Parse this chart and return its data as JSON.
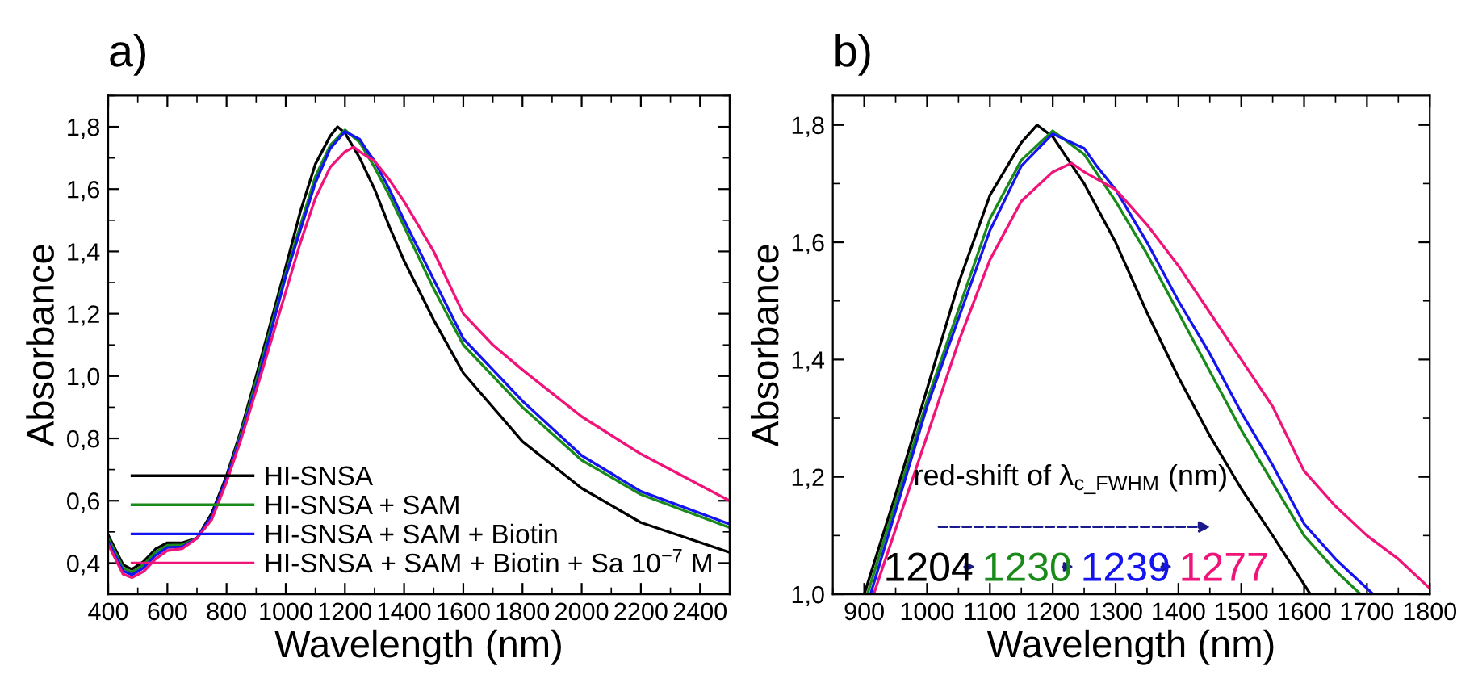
{
  "chart_data": [
    {
      "type": "line",
      "title": "a)",
      "xlabel": "Wavelength (nm)",
      "ylabel": "Absorbance",
      "xlim": [
        400,
        2500
      ],
      "ylim": [
        0.3,
        1.9
      ],
      "xticks": [
        400,
        600,
        800,
        1000,
        1200,
        1400,
        1600,
        1800,
        2000,
        2200,
        2400
      ],
      "yticks": [
        {
          "value": 0.4,
          "label": "0,4"
        },
        {
          "value": 0.6,
          "label": "0,6"
        },
        {
          "value": 0.8,
          "label": "0,8"
        },
        {
          "value": 1.0,
          "label": "1,0"
        },
        {
          "value": 1.2,
          "label": "1,2"
        },
        {
          "value": 1.4,
          "label": "1,4"
        },
        {
          "value": 1.6,
          "label": "1,6"
        },
        {
          "value": 1.8,
          "label": "1,8"
        }
      ],
      "legend": "bottom right",
      "grid": false,
      "series": [
        {
          "name": "HI-SNSA",
          "color": "#000000",
          "x": [
            400,
            450,
            480,
            520,
            560,
            600,
            650,
            700,
            750,
            800,
            850,
            900,
            1000,
            1050,
            1100,
            1150,
            1175,
            1200,
            1250,
            1300,
            1350,
            1400,
            1500,
            1600,
            1800,
            2000,
            2200,
            2500
          ],
          "values": [
            0.49,
            0.395,
            0.38,
            0.405,
            0.445,
            0.465,
            0.465,
            0.48,
            0.56,
            0.68,
            0.83,
            1.0,
            1.35,
            1.53,
            1.68,
            1.77,
            1.8,
            1.78,
            1.7,
            1.6,
            1.48,
            1.37,
            1.18,
            1.01,
            0.79,
            0.64,
            0.53,
            0.434
          ]
        },
        {
          "name": "HI-SNSA + SAM",
          "color": "#1a8a1a",
          "x": [
            400,
            450,
            480,
            520,
            560,
            600,
            650,
            700,
            750,
            800,
            850,
            905,
            1000,
            1100,
            1150,
            1200,
            1250,
            1300,
            1350,
            1400,
            1500,
            1600,
            1800,
            2000,
            2200,
            2500
          ],
          "values": [
            0.48,
            0.385,
            0.37,
            0.395,
            0.435,
            0.457,
            0.458,
            0.48,
            0.55,
            0.67,
            0.82,
            1.0,
            1.33,
            1.64,
            1.74,
            1.79,
            1.75,
            1.67,
            1.58,
            1.48,
            1.28,
            1.1,
            0.9,
            0.73,
            0.62,
            0.514
          ]
        },
        {
          "name": "HI-SNSA + SAM + Biotin",
          "color": "#1414f0",
          "x": [
            400,
            450,
            480,
            520,
            560,
            600,
            650,
            700,
            750,
            800,
            850,
            910,
            1000,
            1100,
            1150,
            1200,
            1250,
            1270,
            1300,
            1350,
            1400,
            1500,
            1600,
            1800,
            2000,
            2200,
            2500
          ],
          "values": [
            0.47,
            0.375,
            0.362,
            0.385,
            0.425,
            0.45,
            0.452,
            0.48,
            0.55,
            0.67,
            0.81,
            1.0,
            1.32,
            1.62,
            1.73,
            1.785,
            1.76,
            1.73,
            1.69,
            1.6,
            1.5,
            1.31,
            1.12,
            0.92,
            0.745,
            0.63,
            0.525
          ]
        },
        {
          "name": "HI-SNSA + SAM + Biotin + Sa 10$^{−7}$ M",
          "color": "#f0147a",
          "x": [
            400,
            450,
            480,
            520,
            560,
            600,
            650,
            700,
            750,
            800,
            850,
            915,
            1000,
            1050,
            1100,
            1150,
            1200,
            1230,
            1250,
            1300,
            1350,
            1400,
            1500,
            1600,
            1700,
            1800,
            2000,
            2200,
            2500
          ],
          "values": [
            0.46,
            0.365,
            0.353,
            0.373,
            0.413,
            0.44,
            0.446,
            0.48,
            0.54,
            0.66,
            0.8,
            1.0,
            1.27,
            1.43,
            1.57,
            1.67,
            1.72,
            1.735,
            1.72,
            1.69,
            1.63,
            1.56,
            1.4,
            1.2,
            1.1,
            1.02,
            0.87,
            0.75,
            0.6
          ]
        }
      ]
    },
    {
      "type": "line",
      "title": "b)",
      "xlabel": "Wavelength (nm)",
      "ylabel": "Absorbance",
      "xlim": [
        850,
        1800
      ],
      "ylim": [
        1.0,
        1.85
      ],
      "xticks": [
        900,
        1000,
        1100,
        1200,
        1300,
        1400,
        1500,
        1600,
        1700,
        1800
      ],
      "yticks": [
        {
          "value": 1.0,
          "label": "1,0"
        },
        {
          "value": 1.2,
          "label": "1,2"
        },
        {
          "value": 1.4,
          "label": "1,4"
        },
        {
          "value": 1.6,
          "label": "1,6"
        },
        {
          "value": 1.8,
          "label": "1,8"
        }
      ],
      "grid": false,
      "annotations": [
        "red-shift of λ$_{c_FWHM}$ (nm)",
        "1204",
        "1230",
        "1239",
        "1277"
      ],
      "series": [
        {
          "color": "#000000",
          "x": [
            900,
            950,
            1000,
            1050,
            1100,
            1150,
            1175,
            1200,
            1250,
            1300,
            1350,
            1400,
            1450,
            1500,
            1550,
            1610
          ],
          "values": [
            1.0,
            1.17,
            1.35,
            1.53,
            1.68,
            1.77,
            1.8,
            1.78,
            1.7,
            1.6,
            1.48,
            1.37,
            1.27,
            1.18,
            1.1,
            1.0
          ]
        },
        {
          "color": "#1a8a1a",
          "x": [
            905,
            1000,
            1100,
            1150,
            1200,
            1250,
            1300,
            1350,
            1400,
            1450,
            1500,
            1550,
            1600,
            1650,
            1690
          ],
          "values": [
            1.0,
            1.33,
            1.64,
            1.74,
            1.79,
            1.75,
            1.67,
            1.58,
            1.48,
            1.38,
            1.28,
            1.19,
            1.1,
            1.04,
            1.0
          ]
        },
        {
          "color": "#1414f0",
          "x": [
            910,
            1000,
            1100,
            1150,
            1200,
            1250,
            1270,
            1300,
            1350,
            1400,
            1450,
            1500,
            1550,
            1600,
            1650,
            1710
          ],
          "values": [
            1.0,
            1.32,
            1.62,
            1.73,
            1.785,
            1.76,
            1.73,
            1.69,
            1.6,
            1.5,
            1.41,
            1.31,
            1.22,
            1.12,
            1.06,
            1.0
          ]
        },
        {
          "color": "#f0147a",
          "x": [
            915,
            1000,
            1050,
            1100,
            1150,
            1200,
            1230,
            1250,
            1300,
            1350,
            1400,
            1450,
            1500,
            1550,
            1600,
            1650,
            1700,
            1750,
            1800
          ],
          "values": [
            1.0,
            1.27,
            1.43,
            1.57,
            1.67,
            1.72,
            1.735,
            1.72,
            1.69,
            1.63,
            1.56,
            1.48,
            1.4,
            1.32,
            1.21,
            1.15,
            1.1,
            1.06,
            1.01
          ]
        }
      ]
    }
  ]
}
